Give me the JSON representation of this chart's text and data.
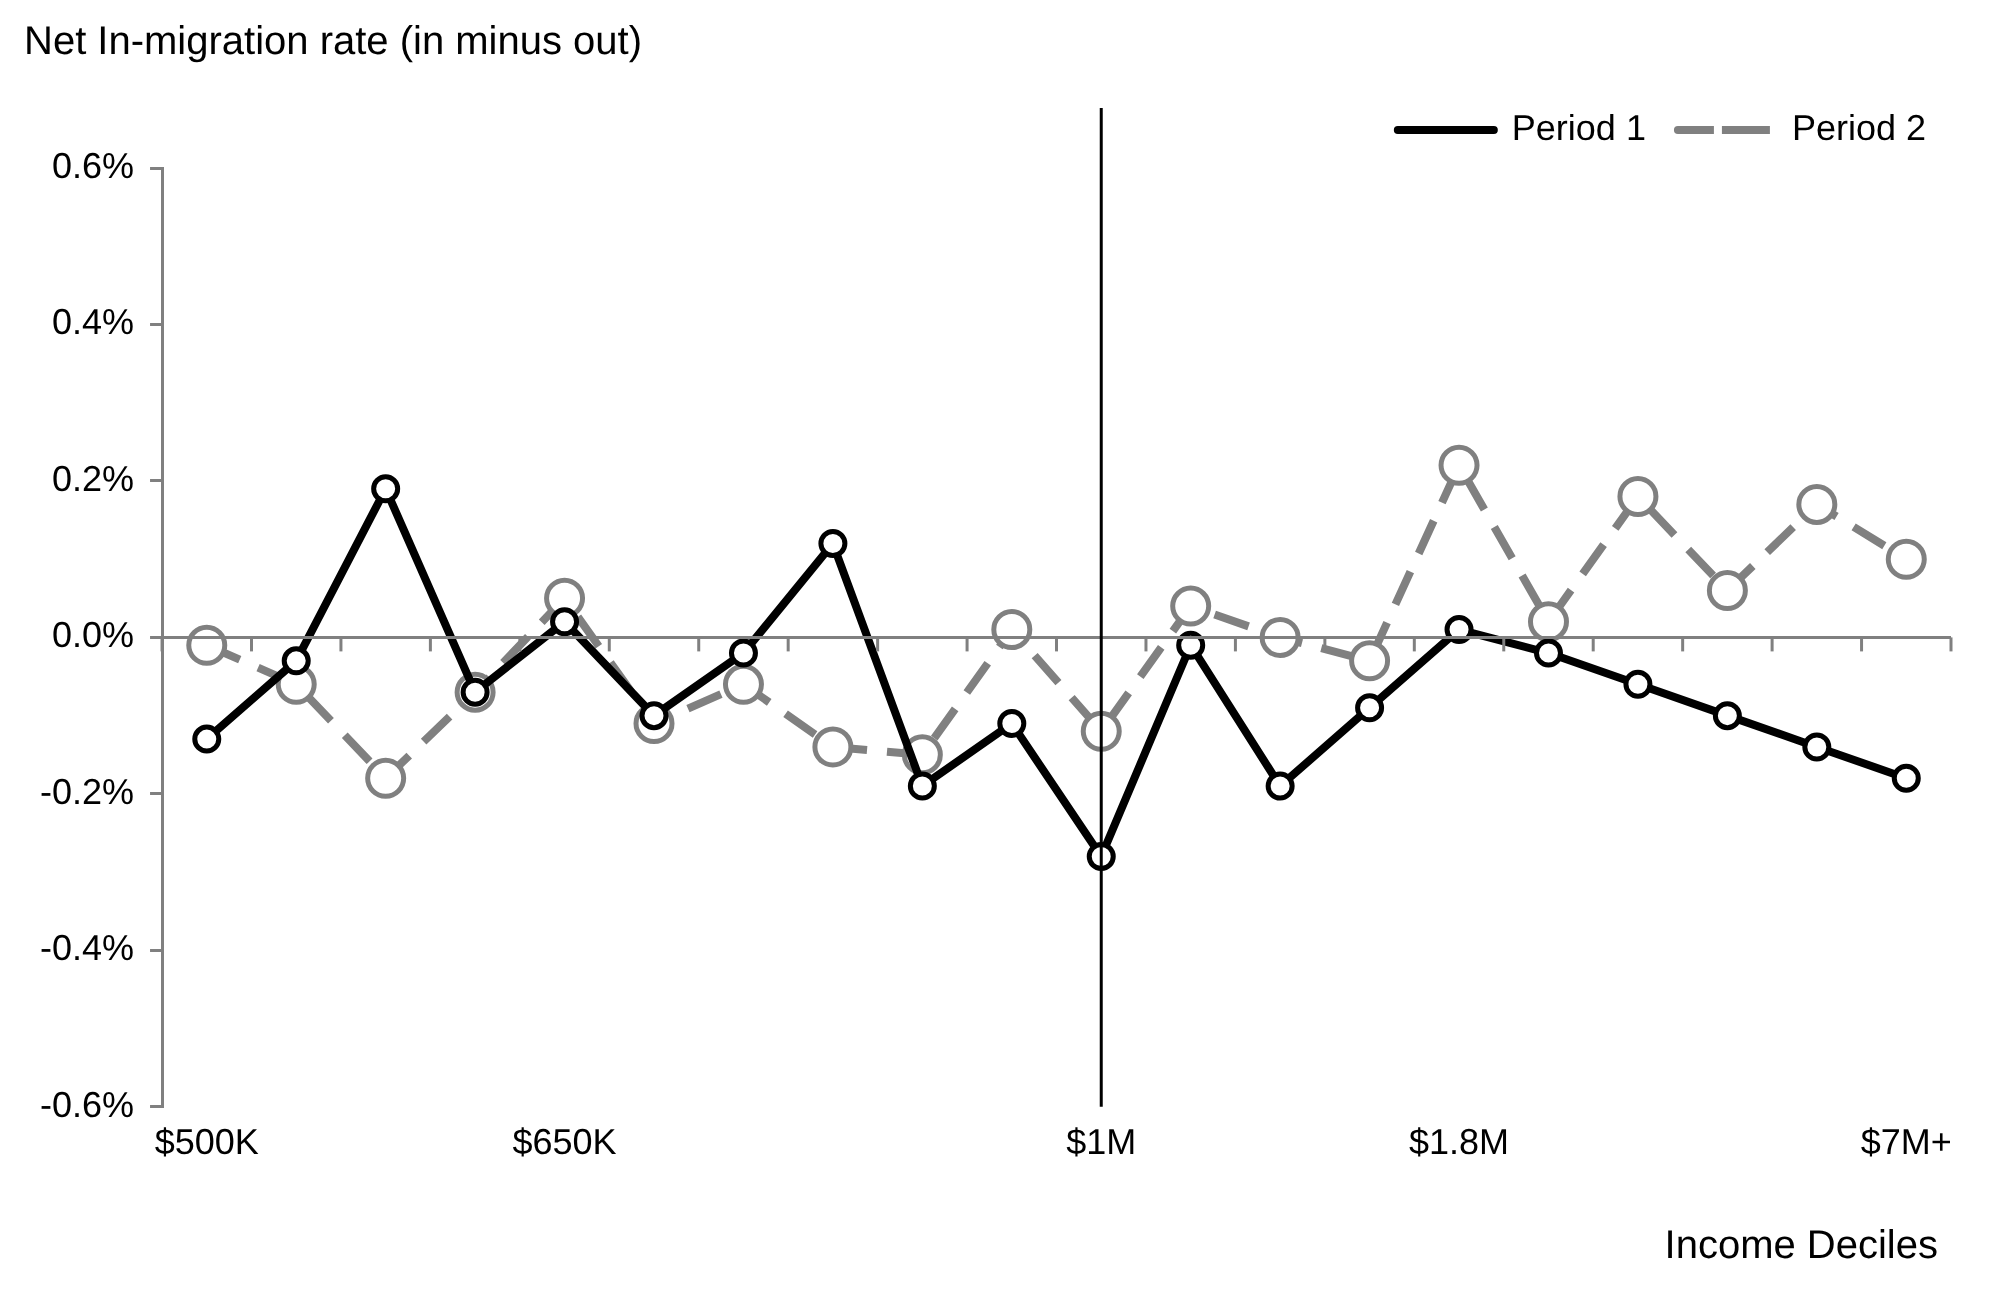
{
  "chart_data": {
    "type": "line",
    "ylabel": "Net In-migration rate (in minus out)",
    "xlabel": "Income Deciles",
    "categories": [
      "$500K",
      null,
      null,
      null,
      "$650K",
      null,
      null,
      null,
      null,
      null,
      "$1M",
      null,
      null,
      null,
      "$1.8M",
      null,
      null,
      null,
      null,
      "$7M+"
    ],
    "ylim": [
      -0.6,
      0.6
    ],
    "yticks": [
      {
        "value": -0.6,
        "label": "-0.6%"
      },
      {
        "value": -0.4,
        "label": "-0.4%"
      },
      {
        "value": -0.2,
        "label": "-0.2%"
      },
      {
        "value": 0,
        "label": "0.0%"
      },
      {
        "value": 0.2,
        "label": "0.2%"
      },
      {
        "value": 0.4,
        "label": "0.4%"
      },
      {
        "value": 0.6,
        "label": "0.6%"
      }
    ],
    "ref_lines": [
      {
        "axis": "x",
        "value": "$1M",
        "color": "#000000"
      }
    ],
    "grid": false,
    "legend": "top right",
    "marker": "circle",
    "series": [
      {
        "name": "Period 1",
        "color": "#000000",
        "line_style": "solid",
        "values": [
          -0.13,
          -0.03,
          0.19,
          -0.07,
          0.02,
          -0.1,
          -0.02,
          0.12,
          -0.19,
          -0.11,
          -0.28,
          -0.01,
          -0.19,
          -0.09,
          0.01,
          -0.02,
          -0.06,
          -0.1,
          -0.14,
          -0.18
        ]
      },
      {
        "name": "Period 2",
        "color": "#808080",
        "line_style": "dashed",
        "values": [
          -0.01,
          -0.06,
          -0.18,
          -0.07,
          0.05,
          -0.11,
          -0.06,
          -0.14,
          -0.15,
          0.01,
          -0.12,
          0.04,
          0.0,
          -0.03,
          0.22,
          0.02,
          0.18,
          0.06,
          0.17,
          0.1
        ]
      }
    ]
  }
}
